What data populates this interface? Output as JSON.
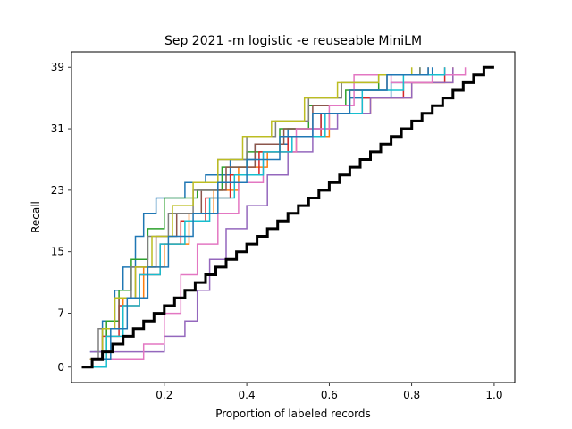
{
  "chart_data": {
    "type": "line",
    "title": "Sep 2021 -m logistic -e reuseable MiniLM",
    "xlabel": "Proportion of labeled records",
    "ylabel": "Recall",
    "xlim": [
      -0.025,
      1.05
    ],
    "ylim": [
      -2,
      41
    ],
    "x_ticks": [
      0.2,
      0.4,
      0.6,
      0.8,
      1.0
    ],
    "x_tick_labels": [
      "0.2",
      "0.4",
      "0.6",
      "0.8",
      "1.0"
    ],
    "y_ticks": [
      0,
      7,
      15,
      23,
      31,
      39
    ],
    "y_tick_labels": [
      "0",
      "7",
      "15",
      "23",
      "31",
      "39"
    ],
    "grid": false,
    "line_style": "step",
    "series": [
      {
        "color": "#1f77b4",
        "x": [
          0.02,
          0.05,
          0.08,
          0.1,
          0.13,
          0.15,
          0.18,
          0.25,
          0.3,
          0.36,
          0.42,
          0.5,
          0.58,
          0.65,
          0.75,
          0.85
        ],
        "y": [
          2,
          6,
          10,
          13,
          17,
          20,
          22,
          24,
          25,
          27,
          29,
          31,
          33,
          35,
          37,
          39
        ]
      },
      {
        "color": "#ff7f0e",
        "x": [
          0.02,
          0.06,
          0.1,
          0.15,
          0.2,
          0.26,
          0.32,
          0.38,
          0.45,
          0.52,
          0.6,
          0.7,
          0.8,
          0.9
        ],
        "y": [
          1,
          5,
          9,
          13,
          16,
          20,
          23,
          26,
          28,
          30,
          33,
          35,
          37,
          39
        ]
      },
      {
        "color": "#2ca02c",
        "x": [
          0.03,
          0.06,
          0.09,
          0.12,
          0.16,
          0.2,
          0.28,
          0.34,
          0.4,
          0.48,
          0.55,
          0.64,
          0.72,
          0.82
        ],
        "y": [
          2,
          6,
          10,
          14,
          18,
          22,
          23,
          26,
          28,
          31,
          34,
          36,
          38,
          39
        ]
      },
      {
        "color": "#d62728",
        "x": [
          0.02,
          0.05,
          0.09,
          0.14,
          0.19,
          0.24,
          0.3,
          0.36,
          0.43,
          0.5,
          0.58,
          0.68,
          0.78,
          0.88
        ],
        "y": [
          1,
          4,
          8,
          12,
          16,
          19,
          22,
          25,
          28,
          30,
          33,
          35,
          37,
          39
        ]
      },
      {
        "color": "#9467bd",
        "x": [
          0.02,
          0.12,
          0.2,
          0.25,
          0.28,
          0.31,
          0.35,
          0.4,
          0.45,
          0.5,
          0.56,
          0.62,
          0.7,
          0.8,
          0.9
        ],
        "y": [
          2,
          2,
          4,
          6,
          10,
          14,
          18,
          21,
          25,
          28,
          31,
          33,
          35,
          37,
          39
        ]
      },
      {
        "color": "#8c564b",
        "x": [
          0.02,
          0.05,
          0.09,
          0.13,
          0.18,
          0.23,
          0.29,
          0.35,
          0.42,
          0.49,
          0.56,
          0.65,
          0.74,
          0.84
        ],
        "y": [
          1,
          5,
          9,
          13,
          17,
          20,
          23,
          26,
          29,
          31,
          34,
          36,
          38,
          39
        ]
      },
      {
        "color": "#e377c2",
        "x": [
          0.02,
          0.15,
          0.2,
          0.24,
          0.28,
          0.33,
          0.38,
          0.44,
          0.52,
          0.6,
          0.66,
          0.75,
          0.85,
          0.93
        ],
        "y": [
          1,
          3,
          7,
          12,
          16,
          20,
          24,
          28,
          31,
          34,
          38,
          37,
          38,
          39
        ]
      },
      {
        "color": "#7f7f7f",
        "x": [
          0.02,
          0.04,
          0.08,
          0.12,
          0.16,
          0.21,
          0.27,
          0.33,
          0.4,
          0.47,
          0.55,
          0.63,
          0.72,
          0.82
        ],
        "y": [
          1,
          5,
          9,
          13,
          17,
          20,
          23,
          27,
          30,
          32,
          35,
          37,
          38,
          39
        ]
      },
      {
        "color": "#bcbd22",
        "x": [
          0.02,
          0.05,
          0.08,
          0.13,
          0.17,
          0.22,
          0.27,
          0.33,
          0.39,
          0.46,
          0.54,
          0.62,
          0.72,
          0.8
        ],
        "y": [
          1,
          5,
          9,
          13,
          17,
          21,
          24,
          27,
          30,
          32,
          35,
          37,
          38,
          39
        ]
      },
      {
        "color": "#17becf",
        "x": [
          0.02,
          0.06,
          0.1,
          0.14,
          0.19,
          0.25,
          0.31,
          0.37,
          0.44,
          0.51,
          0.59,
          0.68,
          0.78,
          0.88
        ],
        "y": [
          0,
          4,
          8,
          12,
          16,
          19,
          22,
          25,
          28,
          30,
          33,
          36,
          38,
          39
        ]
      },
      {
        "color": "#1f77b4",
        "x": [
          0.03,
          0.07,
          0.11,
          0.16,
          0.21,
          0.27,
          0.33,
          0.4,
          0.48,
          0.56,
          0.65,
          0.74,
          0.84
        ],
        "y": [
          1,
          5,
          9,
          13,
          17,
          20,
          24,
          27,
          30,
          33,
          36,
          38,
          39
        ]
      },
      {
        "color": "#000000",
        "width": 3,
        "x": [
          0.0,
          0.025,
          0.05,
          0.075,
          0.1,
          0.125,
          0.15,
          0.175,
          0.2,
          0.225,
          0.25,
          0.275,
          0.3,
          0.325,
          0.35,
          0.375,
          0.4,
          0.425,
          0.45,
          0.475,
          0.5,
          0.525,
          0.55,
          0.575,
          0.6,
          0.625,
          0.65,
          0.675,
          0.7,
          0.725,
          0.75,
          0.775,
          0.8,
          0.825,
          0.85,
          0.875,
          0.9,
          0.925,
          0.95,
          0.975,
          1.0
        ],
        "y": [
          0,
          1,
          2,
          3,
          4,
          5,
          6,
          7,
          8,
          9,
          10,
          11,
          12,
          13,
          14,
          15,
          16,
          17,
          18,
          19,
          20,
          21,
          22,
          23,
          24,
          25,
          26,
          27,
          28,
          29,
          30,
          31,
          32,
          33,
          34,
          35,
          36,
          37,
          38,
          39,
          39
        ]
      }
    ]
  }
}
